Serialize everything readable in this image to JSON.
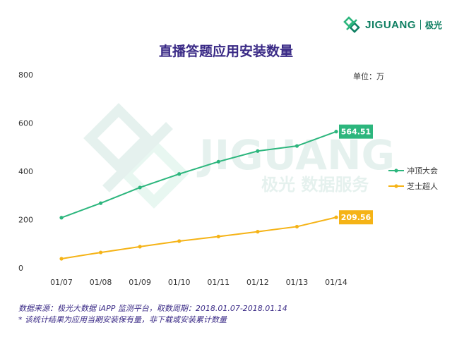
{
  "brand": {
    "name": "JIGUANG",
    "cn": "极光"
  },
  "watermark": {
    "en": "JIGUANG",
    "cn": "极光 数据服务"
  },
  "chart_data": {
    "type": "line",
    "title": "直播答题应用安装数量",
    "unit_label": "单位：万",
    "categories": [
      "01/07",
      "01/08",
      "01/09",
      "01/10",
      "01/11",
      "01/12",
      "01/13",
      "01/14"
    ],
    "ylim": [
      0,
      800
    ],
    "yticks": [
      0,
      200,
      400,
      600,
      800
    ],
    "series": [
      {
        "name": "冲顶大会",
        "color": "#2cb67d",
        "values": [
          208,
          268,
          333,
          389,
          440,
          484,
          505,
          564.51
        ],
        "end_label": "564.51"
      },
      {
        "name": "芝士超人",
        "color": "#f5b316",
        "values": [
          38,
          64,
          88,
          111,
          130,
          150,
          171,
          209.56
        ],
        "end_label": "209.56"
      }
    ],
    "legend_position": "right",
    "grid": false
  },
  "footnote": {
    "source": "数据来源：极光大数据 iAPP 监测平台，取数周期：2018.01.07-2018.01.14",
    "note": "* 该统计结果为应用当期安装保有量，非下载或安装累计数量"
  }
}
